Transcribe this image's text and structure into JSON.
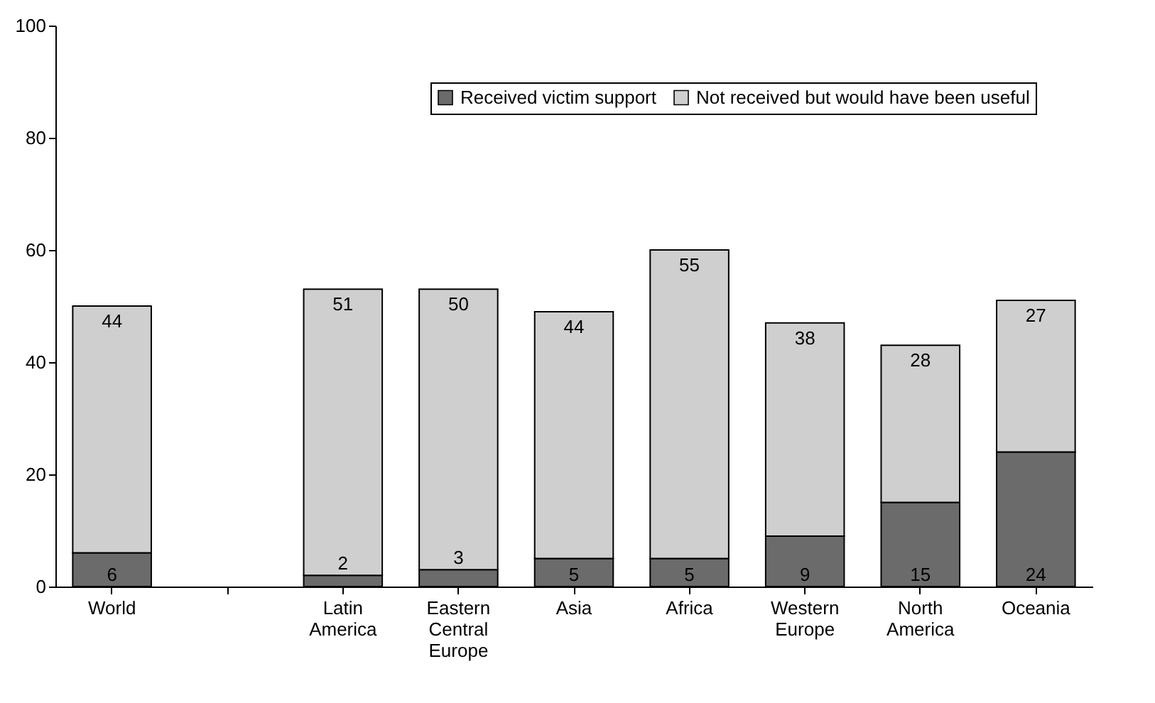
{
  "chart_data": {
    "type": "bar",
    "stacked": true,
    "categories": [
      "World",
      null,
      "Latin America",
      "Eastern Central Europe",
      "Asia",
      "Africa",
      "Western Europe",
      "North America",
      "Oceania"
    ],
    "series": [
      {
        "name": "Received victim support",
        "color": "#6b6b6b",
        "values": [
          6,
          null,
          2,
          3,
          5,
          5,
          9,
          15,
          24
        ]
      },
      {
        "name": "Not received but would have been useful",
        "color": "#cfcfcf",
        "values": [
          44,
          null,
          51,
          50,
          44,
          55,
          38,
          28,
          27
        ]
      }
    ],
    "ylim": [
      0,
      100
    ],
    "yticks": [
      0,
      20,
      40,
      60,
      80,
      100
    ],
    "grid": false,
    "legend": "top right",
    "data_labels": true
  }
}
